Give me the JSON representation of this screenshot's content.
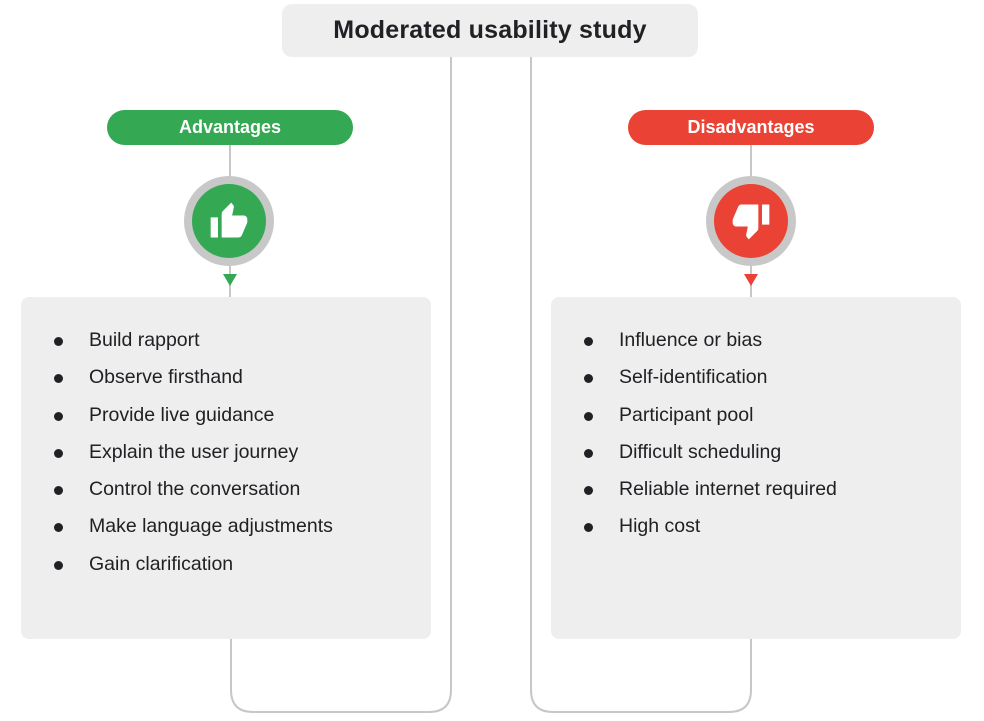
{
  "title": "Moderated usability study",
  "advantages": {
    "label": "Advantages",
    "icon": "thumbs-up-icon",
    "color": "#34a853",
    "items": [
      "Build rapport",
      "Observe firsthand",
      "Provide live guidance",
      "Explain the user journey",
      "Control the conversation",
      "Make language adjustments",
      "Gain clarification"
    ]
  },
  "disadvantages": {
    "label": "Disadvantages",
    "icon": "thumbs-down-icon",
    "color": "#ea4335",
    "items": [
      "Influence or bias",
      "Self-identification",
      "Participant pool",
      "Difficult scheduling",
      "Reliable internet required",
      "High cost"
    ]
  }
}
